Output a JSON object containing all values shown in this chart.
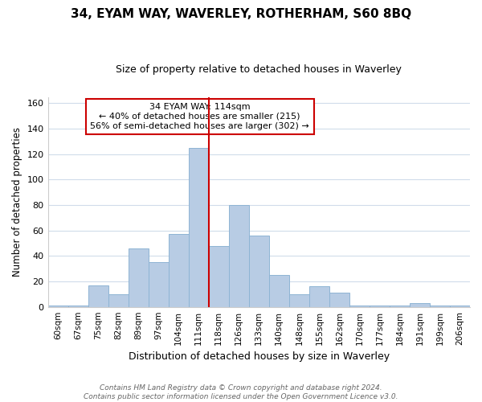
{
  "title": "34, EYAM WAY, WAVERLEY, ROTHERHAM, S60 8BQ",
  "subtitle": "Size of property relative to detached houses in Waverley",
  "xlabel": "Distribution of detached houses by size in Waverley",
  "ylabel": "Number of detached properties",
  "bar_labels": [
    "60sqm",
    "67sqm",
    "75sqm",
    "82sqm",
    "89sqm",
    "97sqm",
    "104sqm",
    "111sqm",
    "118sqm",
    "126sqm",
    "133sqm",
    "140sqm",
    "148sqm",
    "155sqm",
    "162sqm",
    "170sqm",
    "177sqm",
    "184sqm",
    "191sqm",
    "199sqm",
    "206sqm"
  ],
  "bar_heights": [
    1,
    1,
    17,
    10,
    46,
    35,
    57,
    125,
    48,
    80,
    56,
    25,
    10,
    16,
    11,
    1,
    1,
    1,
    3,
    1,
    1
  ],
  "bar_color": "#b8cce4",
  "bar_edge_color": "#8eb4d4",
  "subject_line_idx": 7,
  "subject_line_color": "#cc0000",
  "annotation_text": "34 EYAM WAY: 114sqm\n← 40% of detached houses are smaller (215)\n56% of semi-detached houses are larger (302) →",
  "annotation_box_color": "#ffffff",
  "annotation_box_edge": "#cc0000",
  "ylim": [
    0,
    165
  ],
  "yticks": [
    0,
    20,
    40,
    60,
    80,
    100,
    120,
    140,
    160
  ],
  "footer_text": "Contains HM Land Registry data © Crown copyright and database right 2024.\nContains public sector information licensed under the Open Government Licence v3.0.",
  "bg_color": "#ffffff",
  "grid_color": "#d0dcea"
}
